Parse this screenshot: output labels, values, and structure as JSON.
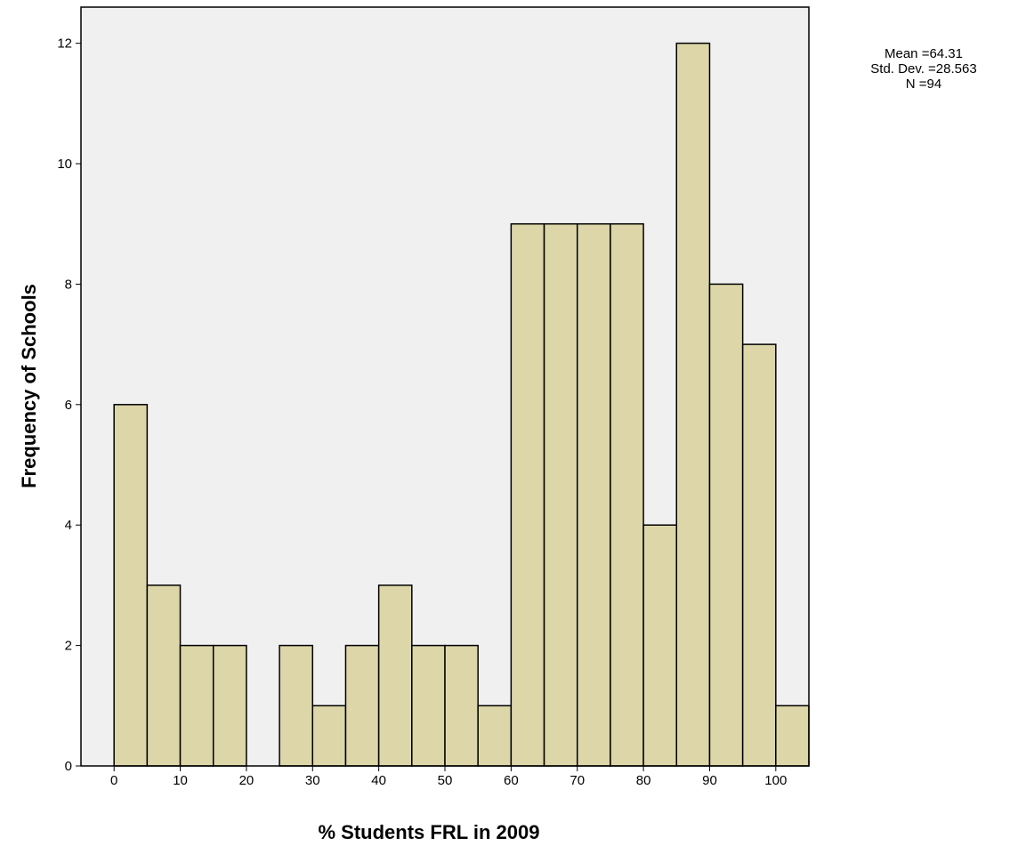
{
  "chart_data": {
    "type": "bar",
    "subtype": "histogram",
    "title": "",
    "xlabel": "% Students FRL in 2009",
    "ylabel": "Frequency of Schools",
    "bin_width": 5,
    "bins": [
      {
        "start": 0,
        "end": 5,
        "count": 6
      },
      {
        "start": 5,
        "end": 10,
        "count": 3
      },
      {
        "start": 10,
        "end": 15,
        "count": 2
      },
      {
        "start": 15,
        "end": 20,
        "count": 2
      },
      {
        "start": 20,
        "end": 25,
        "count": 0
      },
      {
        "start": 25,
        "end": 30,
        "count": 2
      },
      {
        "start": 30,
        "end": 35,
        "count": 1
      },
      {
        "start": 35,
        "end": 40,
        "count": 2
      },
      {
        "start": 40,
        "end": 45,
        "count": 3
      },
      {
        "start": 45,
        "end": 50,
        "count": 2
      },
      {
        "start": 50,
        "end": 55,
        "count": 2
      },
      {
        "start": 55,
        "end": 60,
        "count": 1
      },
      {
        "start": 60,
        "end": 65,
        "count": 9
      },
      {
        "start": 65,
        "end": 70,
        "count": 9
      },
      {
        "start": 70,
        "end": 75,
        "count": 9
      },
      {
        "start": 75,
        "end": 80,
        "count": 9
      },
      {
        "start": 80,
        "end": 85,
        "count": 4
      },
      {
        "start": 85,
        "end": 90,
        "count": 12
      },
      {
        "start": 90,
        "end": 95,
        "count": 8
      },
      {
        "start": 95,
        "end": 100,
        "count": 7
      },
      {
        "start": 100,
        "end": 105,
        "count": 1
      }
    ],
    "xlim": [
      -5,
      105
    ],
    "ylim": [
      0,
      12.6
    ],
    "x_ticks": [
      0,
      10,
      20,
      30,
      40,
      50,
      60,
      70,
      80,
      90,
      100
    ],
    "y_ticks": [
      0,
      2,
      4,
      6,
      8,
      10,
      12
    ],
    "grid": false,
    "statistics": {
      "mean_label": "Mean =64.31",
      "std_label": "Std. Dev. =28.563",
      "n_label": "N =94",
      "placement": "top-right"
    },
    "colors": {
      "bar_fill": "#dcd6a8",
      "bar_stroke": "#000000",
      "plot_background": "#f0f0f0",
      "axis": "#000000"
    }
  }
}
